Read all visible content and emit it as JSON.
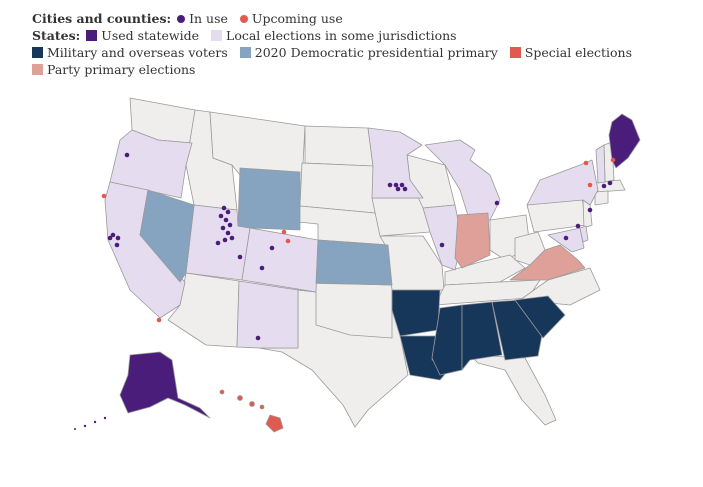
{
  "legend": {
    "cities_heading": "Cities and counties:",
    "cities_items": [
      {
        "label": "In use",
        "color": "#4a1d7a"
      },
      {
        "label": "Upcoming use",
        "color": "#e05a4f"
      }
    ],
    "states_heading": "States:",
    "states_items": [
      {
        "label": "Used statewide",
        "color": "#4a1d7a"
      },
      {
        "label": "Local elections in some jurisdictions",
        "color": "#e6dcef"
      },
      {
        "label": "Military and overseas voters",
        "color": "#16365a"
      },
      {
        "label": "2020 Democratic presidential primary",
        "color": "#86a3c0"
      },
      {
        "label": "Special elections",
        "color": "#e05a4f"
      },
      {
        "label": "Party primary elections",
        "color": "#e0a09a"
      }
    ]
  },
  "map_data": {
    "used_statewide": [
      "Maine",
      "Alaska"
    ],
    "local_elections": [
      "Oregon",
      "California",
      "Utah",
      "Colorado",
      "New Mexico",
      "Minnesota",
      "Michigan",
      "Illinois",
      "New York",
      "Vermont",
      "Maryland",
      "Delaware"
    ],
    "military_overseas": [
      "Arkansas",
      "Louisiana",
      "Mississippi",
      "Alabama",
      "Georgia",
      "South Carolina"
    ],
    "democratic_primary_2020": [
      "Nevada",
      "Wyoming",
      "Kansas"
    ],
    "special_elections": [
      "Hawaii"
    ],
    "party_primary": [
      "Indiana",
      "Virginia"
    ],
    "colors": {
      "base": "#efeeed",
      "border": "#9a9a9a",
      "used_statewide": "#4a1d7a",
      "local": "#e6dcef",
      "military": "#16365a",
      "dem_primary": "#86a3c0",
      "special": "#e05a4f",
      "party_primary": "#e0a09a",
      "in_use": "#4a1d7a",
      "upcoming": "#e05a4f"
    }
  }
}
